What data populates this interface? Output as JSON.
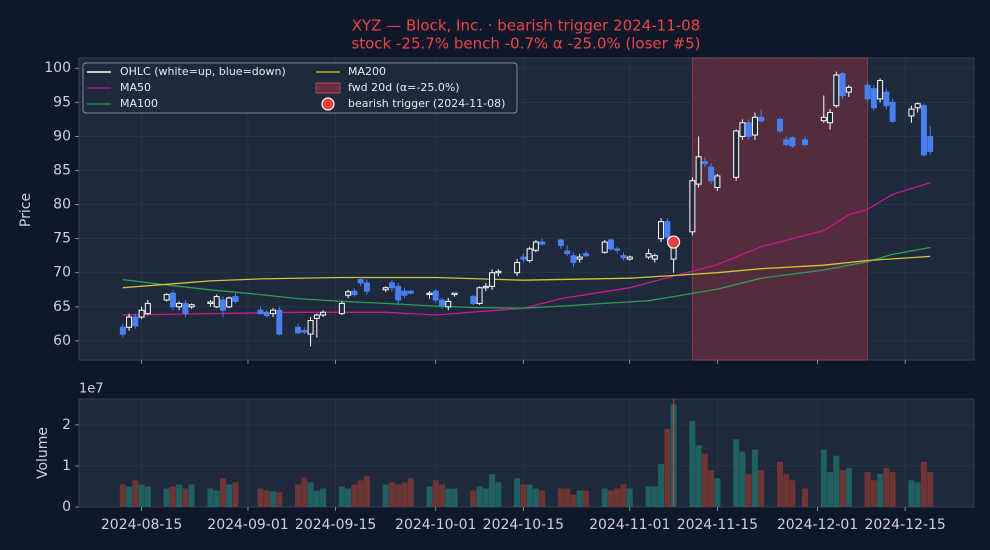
{
  "chart_data": {
    "type": "candlestick",
    "title": "XYZ — Block, Inc. · bearish trigger 2024-11-08",
    "subtitle": "stock -25.7%   bench -0.7%   α -25.0% (loser #5)",
    "ylabel": "Price",
    "ohlc_label": "OHLC (white=up, blue=down)",
    "up_color": "#ffffff",
    "down_color": "#4a7ff0",
    "dates": [
      "2024-08-12",
      "2024-08-13",
      "2024-08-14",
      "2024-08-15",
      "2024-08-16",
      "2024-08-19",
      "2024-08-20",
      "2024-08-21",
      "2024-08-22",
      "2024-08-23",
      "2024-08-26",
      "2024-08-27",
      "2024-08-28",
      "2024-08-29",
      "2024-08-30",
      "2024-09-03",
      "2024-09-04",
      "2024-09-05",
      "2024-09-06",
      "2024-09-09",
      "2024-09-10",
      "2024-09-11",
      "2024-09-12",
      "2024-09-13",
      "2024-09-16",
      "2024-09-17",
      "2024-09-18",
      "2024-09-19",
      "2024-09-20",
      "2024-09-23",
      "2024-09-24",
      "2024-09-25",
      "2024-09-26",
      "2024-09-27",
      "2024-09-30",
      "2024-10-01",
      "2024-10-02",
      "2024-10-03",
      "2024-10-04",
      "2024-10-07",
      "2024-10-08",
      "2024-10-09",
      "2024-10-10",
      "2024-10-11",
      "2024-10-14",
      "2024-10-15",
      "2024-10-16",
      "2024-10-17",
      "2024-10-18",
      "2024-10-21",
      "2024-10-22",
      "2024-10-23",
      "2024-10-24",
      "2024-10-25",
      "2024-10-28",
      "2024-10-29",
      "2024-10-30",
      "2024-10-31",
      "2024-11-01",
      "2024-11-04",
      "2024-11-05",
      "2024-11-06",
      "2024-11-07",
      "2024-11-08",
      "2024-11-11",
      "2024-11-12",
      "2024-11-13",
      "2024-11-14",
      "2024-11-15",
      "2024-11-18",
      "2024-11-19",
      "2024-11-20",
      "2024-11-21",
      "2024-11-22",
      "2024-11-25",
      "2024-11-26",
      "2024-11-27",
      "2024-11-29",
      "2024-12-02",
      "2024-12-03",
      "2024-12-04",
      "2024-12-05",
      "2024-12-06",
      "2024-12-09",
      "2024-12-10",
      "2024-12-11",
      "2024-12-12",
      "2024-12-13",
      "2024-12-16",
      "2024-12-17",
      "2024-12-18",
      "2024-12-19"
    ],
    "open": [
      62,
      62,
      63.5,
      63.5,
      64,
      66,
      67,
      65,
      65.5,
      65,
      65.5,
      65,
      66,
      65,
      66.5,
      64.5,
      64.2,
      64,
      64.5,
      62,
      61.5,
      61,
      63.3,
      63.8,
      64,
      66.7,
      67.3,
      69,
      68.5,
      67.5,
      68.5,
      68,
      67.3,
      67.3,
      66.8,
      67.3,
      66,
      65,
      66.8,
      66.5,
      65.5,
      67.8,
      68,
      70,
      70,
      72.3,
      71.8,
      73.3,
      74.5,
      74.8,
      73.2,
      72.5,
      72,
      72.8,
      73,
      74.8,
      73.5,
      72.5,
      72,
      72.3,
      72,
      75,
      77.5,
      72,
      76,
      83,
      86.3,
      85.5,
      82.5,
      84,
      90,
      92,
      90.2,
      92.8,
      92.5,
      89.5,
      89.8,
      89.5,
      92.3,
      92,
      94.5,
      99.2,
      96.5,
      97.5,
      97,
      95.5,
      96.5,
      95,
      93,
      94.2,
      94.5,
      90
    ],
    "high": [
      62.5,
      64,
      64,
      65,
      66,
      67,
      67.5,
      65.8,
      66,
      65.5,
      66,
      66.8,
      66.5,
      66.5,
      67,
      65,
      64.5,
      64.8,
      65,
      62.5,
      62,
      63.5,
      64,
      64.5,
      65.8,
      67.5,
      67.7,
      69.3,
      69,
      68,
      69,
      68.5,
      67.8,
      67.5,
      67.3,
      67.6,
      66.3,
      66.3,
      67,
      66.8,
      68,
      68.5,
      70.5,
      70.5,
      72,
      72.8,
      73.8,
      74.8,
      75,
      75,
      74,
      73,
      72.8,
      73.2,
      74.8,
      75,
      73.8,
      73,
      72.5,
      73.5,
      72.8,
      78,
      78,
      75,
      84,
      90,
      87,
      86,
      84.5,
      91,
      92.5,
      92.5,
      93.5,
      94,
      92.8,
      90,
      90,
      90,
      96,
      94,
      99.5,
      99.5,
      97.5,
      98,
      97.5,
      98.5,
      97,
      95.5,
      94.5,
      95,
      94.8,
      91.5
    ],
    "low": [
      60.5,
      61.5,
      61.8,
      63.2,
      63.8,
      65.8,
      64.5,
      64.5,
      63.5,
      64.7,
      65,
      64.8,
      63.5,
      64.8,
      65.5,
      63.8,
      63.5,
      63.5,
      60.8,
      61,
      61,
      59.2,
      60.5,
      63.5,
      63.8,
      66.3,
      66.5,
      68,
      66.8,
      67.2,
      67.2,
      65.5,
      66.3,
      66.8,
      66.2,
      65.5,
      64.7,
      64.5,
      66.5,
      65.2,
      65.3,
      67.3,
      67.5,
      69.5,
      69.5,
      71.5,
      71.5,
      73,
      74,
      73.5,
      72.5,
      70.8,
      71.5,
      72.3,
      72.8,
      73.2,
      72.8,
      71.8,
      71.8,
      72,
      71.5,
      74.5,
      74.8,
      70,
      75.5,
      82.5,
      85.5,
      83,
      82,
      83.5,
      89.5,
      89.5,
      89.5,
      92,
      90.5,
      88.5,
      88.3,
      88.5,
      92,
      91,
      94.2,
      95.5,
      95.8,
      95,
      93.8,
      95,
      94,
      92,
      92,
      93.5,
      87,
      87.3
    ],
    "close": [
      61,
      63.5,
      62.2,
      64.5,
      65.5,
      66.8,
      65,
      65.5,
      64,
      65.3,
      65.7,
      66.5,
      64.5,
      66.3,
      65.8,
      64,
      63.7,
      64.5,
      61,
      61.2,
      61.3,
      63,
      63.8,
      64.2,
      65.5,
      67.2,
      66.8,
      68.5,
      67.3,
      67.8,
      67.8,
      66,
      66.7,
      67,
      67,
      66,
      65.2,
      65.8,
      67,
      65.5,
      67.8,
      68,
      70,
      70.2,
      71.5,
      72,
      73.5,
      74.5,
      74.2,
      74,
      72.8,
      71.5,
      72.3,
      72.5,
      74.5,
      73.5,
      73.3,
      72.2,
      72.3,
      72.8,
      72.5,
      77.5,
      75.2,
      74.5,
      83.5,
      87,
      86,
      83.5,
      84.2,
      90.8,
      92,
      90,
      92.8,
      92.3,
      90.8,
      88.8,
      88.6,
      88.8,
      92.8,
      93.5,
      99,
      96,
      97.2,
      95.5,
      94.2,
      98.2,
      94.5,
      92.2,
      94,
      94.8,
      87.3,
      87.8
    ],
    "volume": [
      0.55,
      0.5,
      0.65,
      0.55,
      0.5,
      0.45,
      0.5,
      0.55,
      0.45,
      0.55,
      0.45,
      0.4,
      0.7,
      0.55,
      0.6,
      0.45,
      0.4,
      0.38,
      0.36,
      0.55,
      0.72,
      0.6,
      0.4,
      0.45,
      0.5,
      0.45,
      0.55,
      0.65,
      0.75,
      0.55,
      0.6,
      0.55,
      0.6,
      0.7,
      0.5,
      0.65,
      0.55,
      0.45,
      0.45,
      0.4,
      0.5,
      0.45,
      0.8,
      0.6,
      0.7,
      0.55,
      0.55,
      0.45,
      0.4,
      0.45,
      0.45,
      0.3,
      0.4,
      0.4,
      0.45,
      0.4,
      0.45,
      0.55,
      0.45,
      0.5,
      0.5,
      1.05,
      1.9,
      2.5,
      2.1,
      1.5,
      1.3,
      0.9,
      0.7,
      1.65,
      1.35,
      0.8,
      1.4,
      0.9,
      1.1,
      0.8,
      0.65,
      0.45,
      1.4,
      0.85,
      1.25,
      0.9,
      0.95,
      0.85,
      0.65,
      0.8,
      0.95,
      0.85,
      0.65,
      0.6,
      1.1,
      0.85
    ],
    "volume_up_color": "#1f6060",
    "volume_down_color": "#6f3434",
    "series": [
      {
        "name": "MA50",
        "color": "#c8198f",
        "x": [
          "2024-08-12",
          "2024-08-26",
          "2024-09-09",
          "2024-09-23",
          "2024-10-01",
          "2024-10-15",
          "2024-10-21",
          "2024-11-01",
          "2024-11-08",
          "2024-11-15",
          "2024-11-22",
          "2024-12-02",
          "2024-12-06",
          "2024-12-09",
          "2024-12-13",
          "2024-12-19"
        ],
        "values": [
          63.8,
          64,
          64.2,
          64.2,
          63.8,
          64.8,
          66.2,
          67.8,
          69.5,
          71.2,
          73.8,
          76.2,
          78.5,
          79.3,
          81.5,
          83.2
        ]
      },
      {
        "name": "MA100",
        "color": "#2ca050",
        "x": [
          "2024-08-12",
          "2024-08-19",
          "2024-08-26",
          "2024-09-03",
          "2024-09-09",
          "2024-09-16",
          "2024-09-23",
          "2024-10-01",
          "2024-10-07",
          "2024-10-15",
          "2024-10-21",
          "2024-10-28",
          "2024-11-04",
          "2024-11-08",
          "2024-11-15",
          "2024-11-22",
          "2024-12-02",
          "2024-12-09",
          "2024-12-13",
          "2024-12-19"
        ],
        "values": [
          69,
          68.2,
          67.5,
          66.8,
          66.2,
          65.8,
          65.5,
          65.1,
          64.9,
          64.8,
          65.1,
          65.5,
          65.9,
          66.5,
          67.6,
          69.2,
          70.4,
          71.6,
          72.7,
          73.7
        ]
      },
      {
        "name": "MA200",
        "color": "#d0c636",
        "x": [
          "2024-08-12",
          "2024-08-19",
          "2024-08-26",
          "2024-09-03",
          "2024-09-16",
          "2024-10-01",
          "2024-10-15",
          "2024-11-01",
          "2024-11-08",
          "2024-11-15",
          "2024-11-22",
          "2024-12-02",
          "2024-12-09",
          "2024-12-19"
        ],
        "values": [
          67.8,
          68.3,
          68.8,
          69.1,
          69.3,
          69.3,
          68.9,
          69.2,
          69.6,
          70,
          70.6,
          71.1,
          71.8,
          72.4
        ]
      }
    ],
    "window": {
      "label": "fwd 20d (α=-25.0%)",
      "start": "2024-11-11",
      "end": "2024-12-09",
      "color": "#7a2e40"
    },
    "trigger": {
      "label": "bearish trigger (2024-11-08)",
      "date": "2024-11-08",
      "value": 74.5,
      "color": "#e8413c"
    },
    "xlim": [
      "2024-08-05",
      "2024-12-26"
    ],
    "xticks": [
      "2024-08-15",
      "2024-09-01",
      "2024-09-15",
      "2024-10-01",
      "2024-10-15",
      "2024-11-01",
      "2024-11-15",
      "2024-12-01",
      "2024-12-15"
    ],
    "ylim": [
      57.2,
      101.5
    ],
    "yticks": [
      60,
      65,
      70,
      75,
      80,
      85,
      90,
      95,
      100
    ],
    "volume_ylabel": "Volume",
    "volume_offset_label": "1e7",
    "volume_ylim": [
      0,
      2.63
    ],
    "volume_yticks": [
      0,
      1,
      2
    ],
    "grid": true
  }
}
